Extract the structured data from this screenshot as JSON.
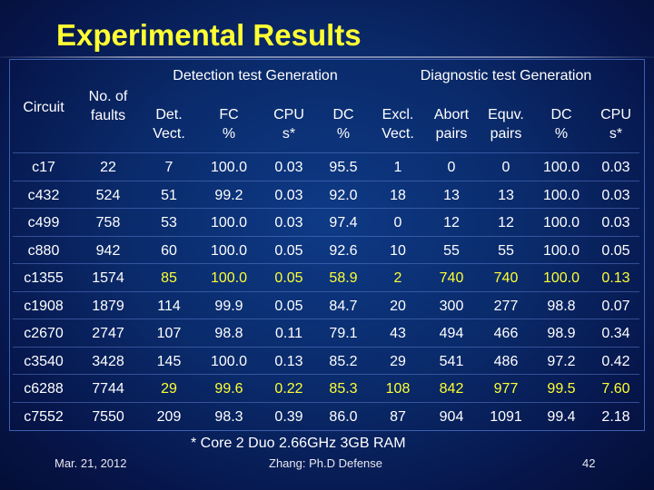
{
  "title": "Experimental Results",
  "groups": {
    "detection": "Detection test Generation",
    "diagnostic": "Diagnostic test Generation"
  },
  "headers": {
    "circuit": "Circuit",
    "faults_1": "No. of",
    "faults_2": "faults",
    "det_1": "Det.",
    "det_2": "Vect.",
    "fc_1": "FC",
    "fc_2": "%",
    "cpu1_1": "CPU",
    "cpu1_2": "s*",
    "dc1_1": "DC",
    "dc1_2": "%",
    "excl_1": "Excl.",
    "excl_2": "Vect.",
    "abort_1": "Abort",
    "abort_2": "pairs",
    "equv_1": "Equv.",
    "equv_2": "pairs",
    "dc2_1": "DC",
    "dc2_2": "%",
    "cpu2_1": "CPU",
    "cpu2_2": "s*"
  },
  "rows": [
    [
      "c17",
      "22",
      "7",
      "100.0",
      "0.03",
      "95.5",
      "1",
      "0",
      "0",
      "100.0",
      "0.03"
    ],
    [
      "c432",
      "524",
      "51",
      "99.2",
      "0.03",
      "92.0",
      "18",
      "13",
      "13",
      "100.0",
      "0.03"
    ],
    [
      "c499",
      "758",
      "53",
      "100.0",
      "0.03",
      "97.4",
      "0",
      "12",
      "12",
      "100.0",
      "0.03"
    ],
    [
      "c880",
      "942",
      "60",
      "100.0",
      "0.05",
      "92.6",
      "10",
      "55",
      "55",
      "100.0",
      "0.05"
    ],
    [
      "c1355",
      "1574",
      "85",
      "100.0",
      "0.05",
      "58.9",
      "2",
      "740",
      "740",
      "100.0",
      "0.13"
    ],
    [
      "c1908",
      "1879",
      "114",
      "99.9",
      "0.05",
      "84.7",
      "20",
      "300",
      "277",
      "98.8",
      "0.07"
    ],
    [
      "c2670",
      "2747",
      "107",
      "98.8",
      "0.11",
      "79.1",
      "43",
      "494",
      "466",
      "98.9",
      "0.34"
    ],
    [
      "c3540",
      "3428",
      "145",
      "100.0",
      "0.13",
      "85.2",
      "29",
      "541",
      "486",
      "97.2",
      "0.42"
    ],
    [
      "c6288",
      "7744",
      "29",
      "99.6",
      "0.22",
      "85.3",
      "108",
      "842",
      "977",
      "99.5",
      "7.60"
    ],
    [
      "c7552",
      "7550",
      "209",
      "98.3",
      "0.39",
      "86.0",
      "87",
      "904",
      "1091",
      "99.4",
      "2.18"
    ]
  ],
  "highlight_color": "#ffff33",
  "highlighted_cells": [
    {
      "row": 4,
      "cols": [
        2,
        3,
        4,
        5,
        6,
        7,
        8,
        9,
        10
      ]
    },
    {
      "row": 8,
      "cols": [
        2,
        3,
        4,
        5,
        6,
        7,
        8,
        9,
        10
      ]
    }
  ],
  "footnote": "* Core 2 Duo 2.66GHz 3GB RAM",
  "footer": {
    "date": "Mar. 21, 2012",
    "center": "Zhang: Ph.D Defense",
    "page": "42"
  }
}
